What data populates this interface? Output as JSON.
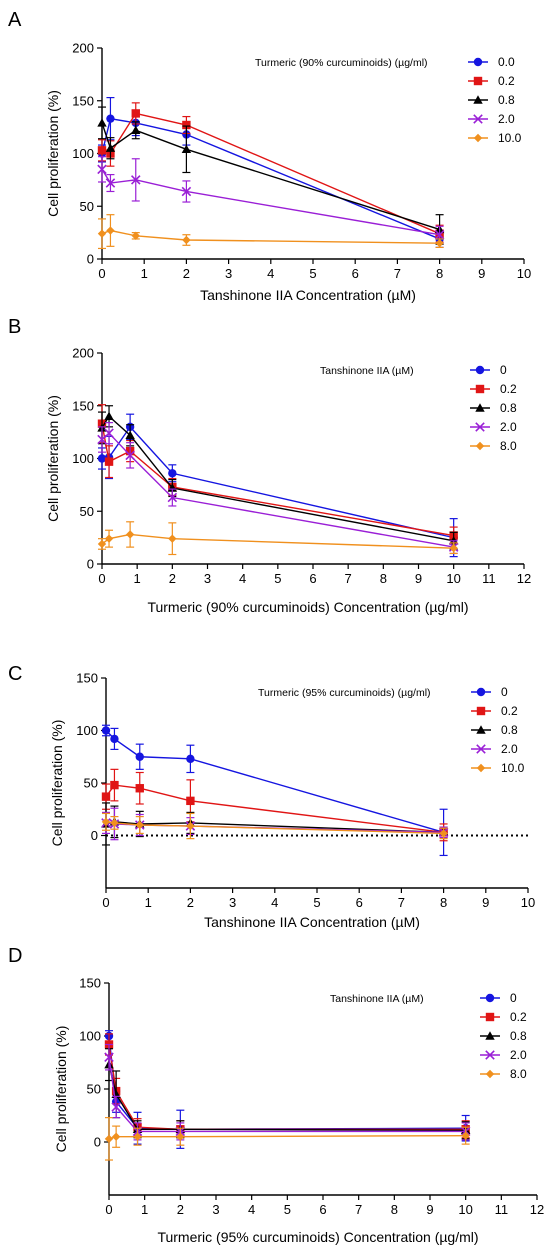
{
  "chart_data": [
    {
      "type": "line",
      "panel_label": "A",
      "xlabel": "Tanshinone IIA Concentration (µM)",
      "ylabel": "Cell proliferation (%)",
      "xlim": [
        0,
        10
      ],
      "ylim": [
        0,
        200
      ],
      "xticks": [
        0,
        1,
        2,
        3,
        4,
        5,
        6,
        7,
        8,
        9,
        10
      ],
      "yticks": [
        0,
        50,
        100,
        150,
        200
      ],
      "zero_line": false,
      "legend_title": "Turmeric (90% curcuminoids) (µg/ml)",
      "legend_position": "top-right",
      "x": [
        0,
        0.2,
        0.8,
        2,
        8
      ],
      "series": [
        {
          "name": "0.0",
          "color": "#1515e0",
          "marker": "circle",
          "values": [
            100,
            133,
            129,
            118,
            19
          ],
          "errors": [
            8,
            20,
            12,
            10,
            8
          ]
        },
        {
          "name": "0.2",
          "color": "#e01515",
          "marker": "square",
          "values": [
            103,
            100,
            138,
            127,
            24
          ],
          "errors": [
            10,
            12,
            10,
            8,
            8
          ]
        },
        {
          "name": "0.8",
          "color": "#000000",
          "marker": "triangle",
          "values": [
            129,
            105,
            122,
            104,
            28
          ],
          "errors": [
            15,
            10,
            8,
            22,
            14
          ]
        },
        {
          "name": "2.0",
          "color": "#9a1fd6",
          "marker": "x",
          "values": [
            85,
            72,
            75,
            64,
            23
          ],
          "errors": [
            12,
            8,
            20,
            10,
            8
          ]
        },
        {
          "name": "10.0",
          "color": "#f0901e",
          "marker": "diamond",
          "values": [
            24,
            27,
            22,
            18,
            15
          ],
          "errors": [
            14,
            15,
            3,
            5,
            4
          ]
        }
      ]
    },
    {
      "type": "line",
      "panel_label": "B",
      "xlabel": "Turmeric (90% curcuminoids) Concentration (µg/ml)",
      "ylabel": "Cell proliferation (%)",
      "xlim": [
        0,
        12
      ],
      "ylim": [
        0,
        200
      ],
      "xticks": [
        0,
        1,
        2,
        3,
        4,
        5,
        6,
        7,
        8,
        9,
        10,
        11,
        12
      ],
      "yticks": [
        0,
        50,
        100,
        150,
        200
      ],
      "zero_line": false,
      "legend_title": "Tanshinone IIA (µM)",
      "legend_position": "top-right",
      "x": [
        0,
        0.2,
        0.8,
        2,
        10
      ],
      "series": [
        {
          "name": "0",
          "color": "#1515e0",
          "marker": "circle",
          "values": [
            100,
            101,
            130,
            86,
            25
          ],
          "errors": [
            10,
            20,
            12,
            8,
            18
          ]
        },
        {
          "name": "0.2",
          "color": "#e01515",
          "marker": "square",
          "values": [
            133,
            97,
            107,
            73,
            27
          ],
          "errors": [
            18,
            15,
            10,
            8,
            8
          ]
        },
        {
          "name": "0.8",
          "color": "#000000",
          "marker": "triangle",
          "values": [
            129,
            140,
            122,
            72,
            22
          ],
          "errors": [
            15,
            10,
            10,
            8,
            8
          ]
        },
        {
          "name": "2.0",
          "color": "#9a1fd6",
          "marker": "x",
          "values": [
            118,
            124,
            103,
            63,
            16
          ],
          "errors": [
            12,
            10,
            12,
            8,
            6
          ]
        },
        {
          "name": "8.0",
          "color": "#f0901e",
          "marker": "diamond",
          "values": [
            19,
            24,
            28,
            24,
            15
          ],
          "errors": [
            5,
            8,
            12,
            15,
            5
          ]
        }
      ]
    },
    {
      "type": "line",
      "panel_label": "C",
      "xlabel": "Tanshinone IIA Concentration (µM)",
      "ylabel": "Cell proliferation (%)",
      "xlim": [
        0,
        10
      ],
      "ylim": [
        -50,
        150
      ],
      "xticks": [
        0,
        1,
        2,
        3,
        4,
        5,
        6,
        7,
        8,
        9,
        10
      ],
      "yticks": [
        0,
        50,
        100,
        150
      ],
      "zero_line": true,
      "legend_title": "Turmeric (95% curcuminoids) (µg/ml)",
      "legend_position": "top-right",
      "x": [
        0,
        0.2,
        0.8,
        2,
        8
      ],
      "series": [
        {
          "name": "0",
          "color": "#1515e0",
          "marker": "circle",
          "values": [
            100,
            92,
            75,
            73,
            3
          ],
          "errors": [
            5,
            10,
            12,
            13,
            22
          ]
        },
        {
          "name": "0.2",
          "color": "#e01515",
          "marker": "square",
          "values": [
            37,
            48,
            45,
            33,
            3
          ],
          "errors": [
            12,
            15,
            15,
            20,
            8
          ]
        },
        {
          "name": "0.8",
          "color": "#000000",
          "marker": "triangle",
          "values": [
            11,
            13,
            11,
            12,
            3
          ],
          "errors": [
            20,
            15,
            12,
            10,
            5
          ]
        },
        {
          "name": "2.0",
          "color": "#9a1fd6",
          "marker": "x",
          "values": [
            12,
            11,
            10,
            9,
            3
          ],
          "errors": [
            10,
            15,
            10,
            8,
            5
          ]
        },
        {
          "name": "10.0",
          "color": "#f0901e",
          "marker": "diamond",
          "values": [
            13,
            12,
            10,
            9,
            2
          ],
          "errors": [
            8,
            6,
            8,
            12,
            5
          ]
        }
      ]
    },
    {
      "type": "line",
      "panel_label": "D",
      "xlabel": "Turmeric (95% curcuminoids) Concentration (µg/ml)",
      "ylabel": "Cell proliferation (%)",
      "xlim": [
        0,
        12
      ],
      "ylim": [
        -50,
        150
      ],
      "xticks": [
        0,
        1,
        2,
        3,
        4,
        5,
        6,
        7,
        8,
        9,
        10,
        11,
        12
      ],
      "yticks": [
        0,
        50,
        100,
        150
      ],
      "zero_line": false,
      "legend_title": "Tanshinone IIA (µM)",
      "legend_position": "top-right",
      "x": [
        0,
        0.2,
        0.8,
        2,
        10
      ],
      "series": [
        {
          "name": "0",
          "color": "#1515e0",
          "marker": "circle",
          "values": [
            100,
            38,
            13,
            12,
            13
          ],
          "errors": [
            5,
            10,
            15,
            18,
            12
          ]
        },
        {
          "name": "0.2",
          "color": "#e01515",
          "marker": "square",
          "values": [
            92,
            48,
            14,
            12,
            12
          ],
          "errors": [
            10,
            12,
            8,
            8,
            8
          ]
        },
        {
          "name": "0.8",
          "color": "#000000",
          "marker": "triangle",
          "values": [
            73,
            45,
            12,
            12,
            11
          ],
          "errors": [
            15,
            22,
            8,
            8,
            8
          ]
        },
        {
          "name": "2.0",
          "color": "#9a1fd6",
          "marker": "x",
          "values": [
            80,
            33,
            10,
            10,
            10
          ],
          "errors": [
            12,
            10,
            8,
            8,
            8
          ]
        },
        {
          "name": "8.0",
          "color": "#f0901e",
          "marker": "diamond",
          "values": [
            3,
            5,
            5,
            5,
            6
          ],
          "errors": [
            20,
            10,
            8,
            8,
            8
          ]
        }
      ]
    }
  ]
}
